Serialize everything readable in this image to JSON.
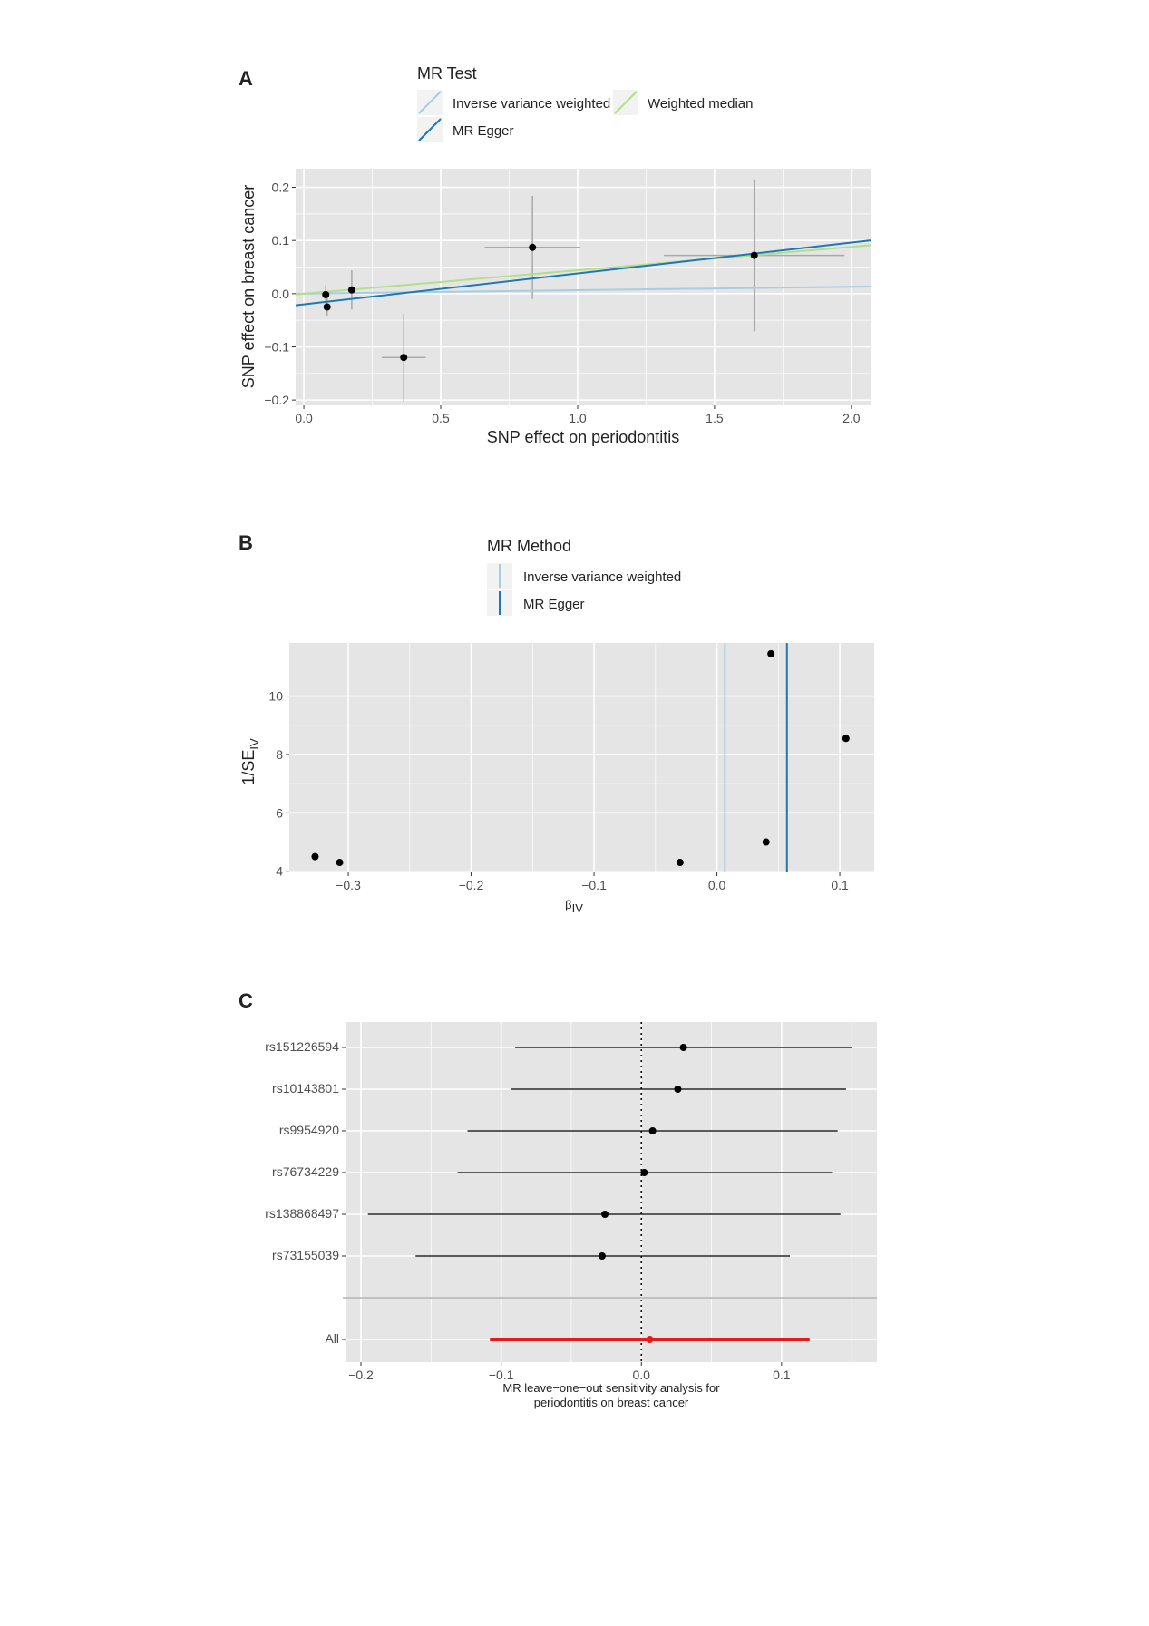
{
  "colors": {
    "panel_bg": "#e5e5e5",
    "grid": "#ffffff",
    "ivw": "#a6cee3",
    "egger": "#1f78b4",
    "median": "#b2df8a",
    "point": "#000000",
    "errorbar": "#a9a9a9",
    "all_line": "#e41a1c"
  },
  "chart_data": [
    {
      "panel": "A",
      "type": "scatter",
      "legend": {
        "title": "MR Test",
        "position": "top",
        "entries": [
          {
            "key": "ivw",
            "label": "Inverse variance weighted"
          },
          {
            "key": "median",
            "label": "Weighted median"
          },
          {
            "key": "egger",
            "label": "MR Egger"
          }
        ]
      },
      "xlabel": "SNP effect on periodontitis",
      "ylabel": "SNP effect on breast cancer",
      "xlim": [
        -0.03,
        2.07
      ],
      "ylim": [
        -0.21,
        0.235
      ],
      "xticks": [
        0.0,
        0.5,
        1.0,
        1.5,
        2.0
      ],
      "xtick_labels": [
        "0.0",
        "0.5",
        "1.0",
        "1.5",
        "2.0"
      ],
      "yticks": [
        -0.2,
        -0.1,
        0.0,
        0.1,
        0.2
      ],
      "ytick_labels": [
        "−0.2",
        "−0.1",
        "0.0",
        "0.1",
        "0.2"
      ],
      "points": [
        {
          "x": 0.08,
          "y": -0.002,
          "xerr": 0.01,
          "yerr": 0.018
        },
        {
          "x": 0.085,
          "y": -0.025,
          "xerr": 0.01,
          "yerr": 0.018
        },
        {
          "x": 0.175,
          "y": 0.007,
          "xerr": 0.015,
          "yerr": 0.037
        },
        {
          "x": 0.365,
          "y": -0.12,
          "xerr": 0.08,
          "yerr": 0.082
        },
        {
          "x": 0.835,
          "y": 0.087,
          "xerr": 0.175,
          "yerr": 0.097
        },
        {
          "x": 1.645,
          "y": 0.072,
          "xerr": 0.33,
          "yerr": 0.143
        }
      ],
      "lines": [
        {
          "key": "ivw",
          "intercept": 0.0,
          "slope": 0.0065
        },
        {
          "key": "median",
          "intercept": 0.0,
          "slope": 0.044
        },
        {
          "key": "egger",
          "intercept": -0.02,
          "slope": 0.058
        }
      ],
      "grid": true
    },
    {
      "panel": "B",
      "type": "scatter",
      "legend": {
        "title": "MR Method",
        "position": "top",
        "entries": [
          {
            "key": "ivw",
            "label": "Inverse variance weighted"
          },
          {
            "key": "egger",
            "label": "MR Egger"
          }
        ]
      },
      "xlabel": "β",
      "xlabel_sub": "IV",
      "ylabel": "1/SE",
      "ylabel_sub": "IV",
      "xlim": [
        -0.348,
        0.128
      ],
      "ylim": [
        3.96,
        11.82
      ],
      "xticks": [
        -0.3,
        -0.2,
        -0.1,
        0.0,
        0.1
      ],
      "xtick_labels": [
        "−0.3",
        "−0.2",
        "−0.1",
        "0.0",
        "0.1"
      ],
      "yticks": [
        4,
        6,
        8,
        10
      ],
      "ytick_labels": [
        "4",
        "6",
        "8",
        "10"
      ],
      "points": [
        {
          "x": 0.044,
          "y": 11.45
        },
        {
          "x": 0.105,
          "y": 8.55
        },
        {
          "x": 0.04,
          "y": 5.0
        },
        {
          "x": -0.327,
          "y": 4.5
        },
        {
          "x": -0.307,
          "y": 4.3
        },
        {
          "x": -0.03,
          "y": 4.3
        }
      ],
      "vlines": [
        {
          "key": "ivw",
          "x": 0.0065
        },
        {
          "key": "egger",
          "x": 0.057
        }
      ],
      "grid": true
    },
    {
      "panel": "C",
      "type": "forest",
      "xlabel": "MR leave−one−out sensitivity analysis for periodontitis on breast cancer",
      "xlabel_lines": [
        "MR leave−one−out sensitivity analysis for",
        "periodontitis on breast cancer"
      ],
      "xlim": [
        -0.211,
        0.168
      ],
      "xticks": [
        -0.2,
        -0.1,
        0.0,
        0.1
      ],
      "xtick_labels": [
        "−0.2",
        "−0.1",
        "0.0",
        "0.1"
      ],
      "reference_line": 0.0,
      "rows": [
        {
          "label": "rs151226594",
          "estimate": 0.03,
          "lower": -0.09,
          "upper": 0.15
        },
        {
          "label": "rs10143801",
          "estimate": 0.026,
          "lower": -0.093,
          "upper": 0.146
        },
        {
          "label": "rs9954920",
          "estimate": 0.008,
          "lower": -0.124,
          "upper": 0.14
        },
        {
          "label": "rs76734229",
          "estimate": 0.002,
          "lower": -0.131,
          "upper": 0.136
        },
        {
          "label": "rs138868497",
          "estimate": -0.026,
          "lower": -0.195,
          "upper": 0.142
        },
        {
          "label": "rs73155039",
          "estimate": -0.028,
          "lower": -0.161,
          "upper": 0.106
        }
      ],
      "overall": {
        "label": "All",
        "estimate": 0.006,
        "lower": -0.108,
        "upper": 0.12
      },
      "grid": true
    }
  ]
}
